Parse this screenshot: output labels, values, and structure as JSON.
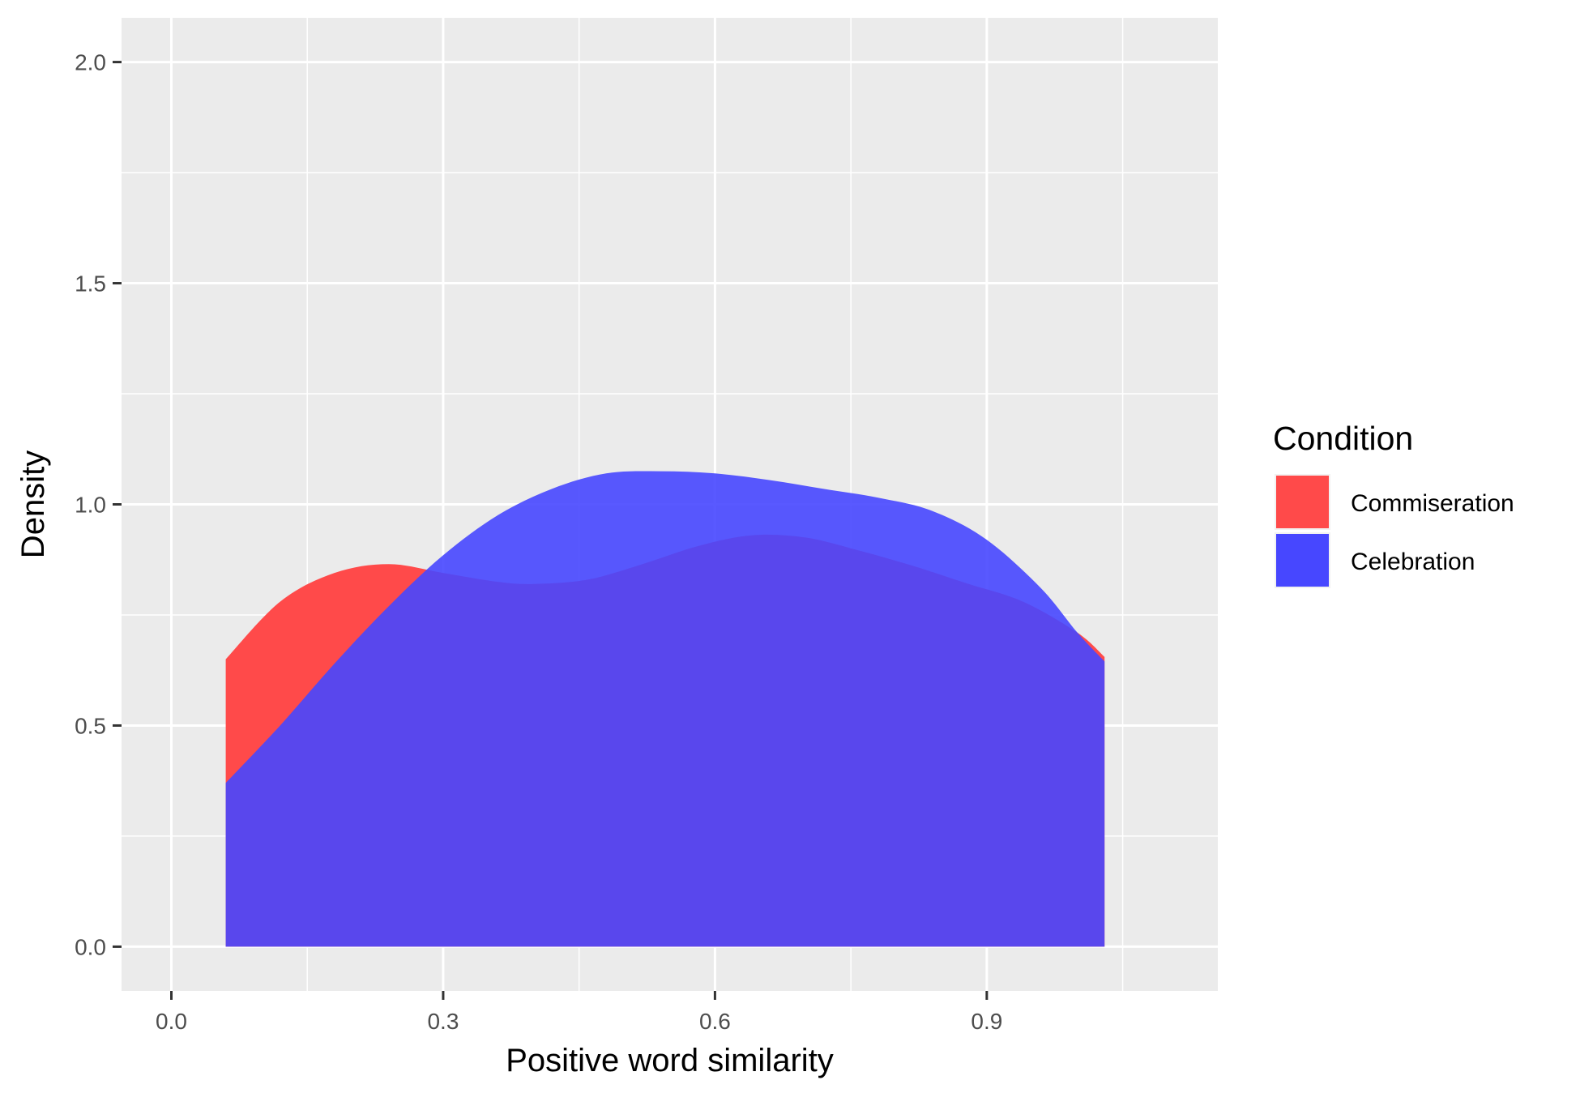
{
  "chart_data": {
    "type": "area",
    "xlabel": "Positive word similarity",
    "ylabel": "Density",
    "xlim": [
      -0.055,
      1.155
    ],
    "ylim": [
      -0.1,
      2.1
    ],
    "x_ticks": [
      "0.0",
      "0.3",
      "0.6",
      "0.9"
    ],
    "x_tick_values": [
      0.0,
      0.3,
      0.6,
      0.9
    ],
    "x_minor_ticks": [
      0.15,
      0.45,
      0.75,
      1.05
    ],
    "y_ticks": [
      "0.0",
      "0.5",
      "1.0",
      "1.5",
      "2.0"
    ],
    "y_tick_values": [
      0.0,
      0.5,
      1.0,
      1.5,
      2.0
    ],
    "y_minor_ticks": [
      0.25,
      0.75,
      1.25,
      1.75
    ],
    "grid": true,
    "panel_background": "#ebebeb",
    "legend": {
      "title": "Condition",
      "position": "right"
    },
    "series": [
      {
        "name": "Commiseration",
        "color": "#ff4a4a",
        "x": [
          0.06,
          0.12,
          0.18,
          0.24,
          0.3,
          0.36,
          0.4,
          0.46,
          0.52,
          0.58,
          0.64,
          0.7,
          0.76,
          0.82,
          0.88,
          0.94,
          1.0,
          1.03
        ],
        "y": [
          0.65,
          0.78,
          0.845,
          0.865,
          0.845,
          0.825,
          0.82,
          0.83,
          0.865,
          0.905,
          0.93,
          0.925,
          0.895,
          0.86,
          0.82,
          0.78,
          0.71,
          0.655
        ]
      },
      {
        "name": "Celebration",
        "color": "#4747ff",
        "x": [
          0.06,
          0.12,
          0.18,
          0.24,
          0.3,
          0.36,
          0.42,
          0.48,
          0.54,
          0.6,
          0.66,
          0.72,
          0.78,
          0.84,
          0.9,
          0.96,
          1.0,
          1.03
        ],
        "y": [
          0.37,
          0.5,
          0.64,
          0.77,
          0.885,
          0.975,
          1.035,
          1.07,
          1.075,
          1.07,
          1.055,
          1.035,
          1.015,
          0.985,
          0.92,
          0.81,
          0.71,
          0.645
        ]
      }
    ]
  }
}
